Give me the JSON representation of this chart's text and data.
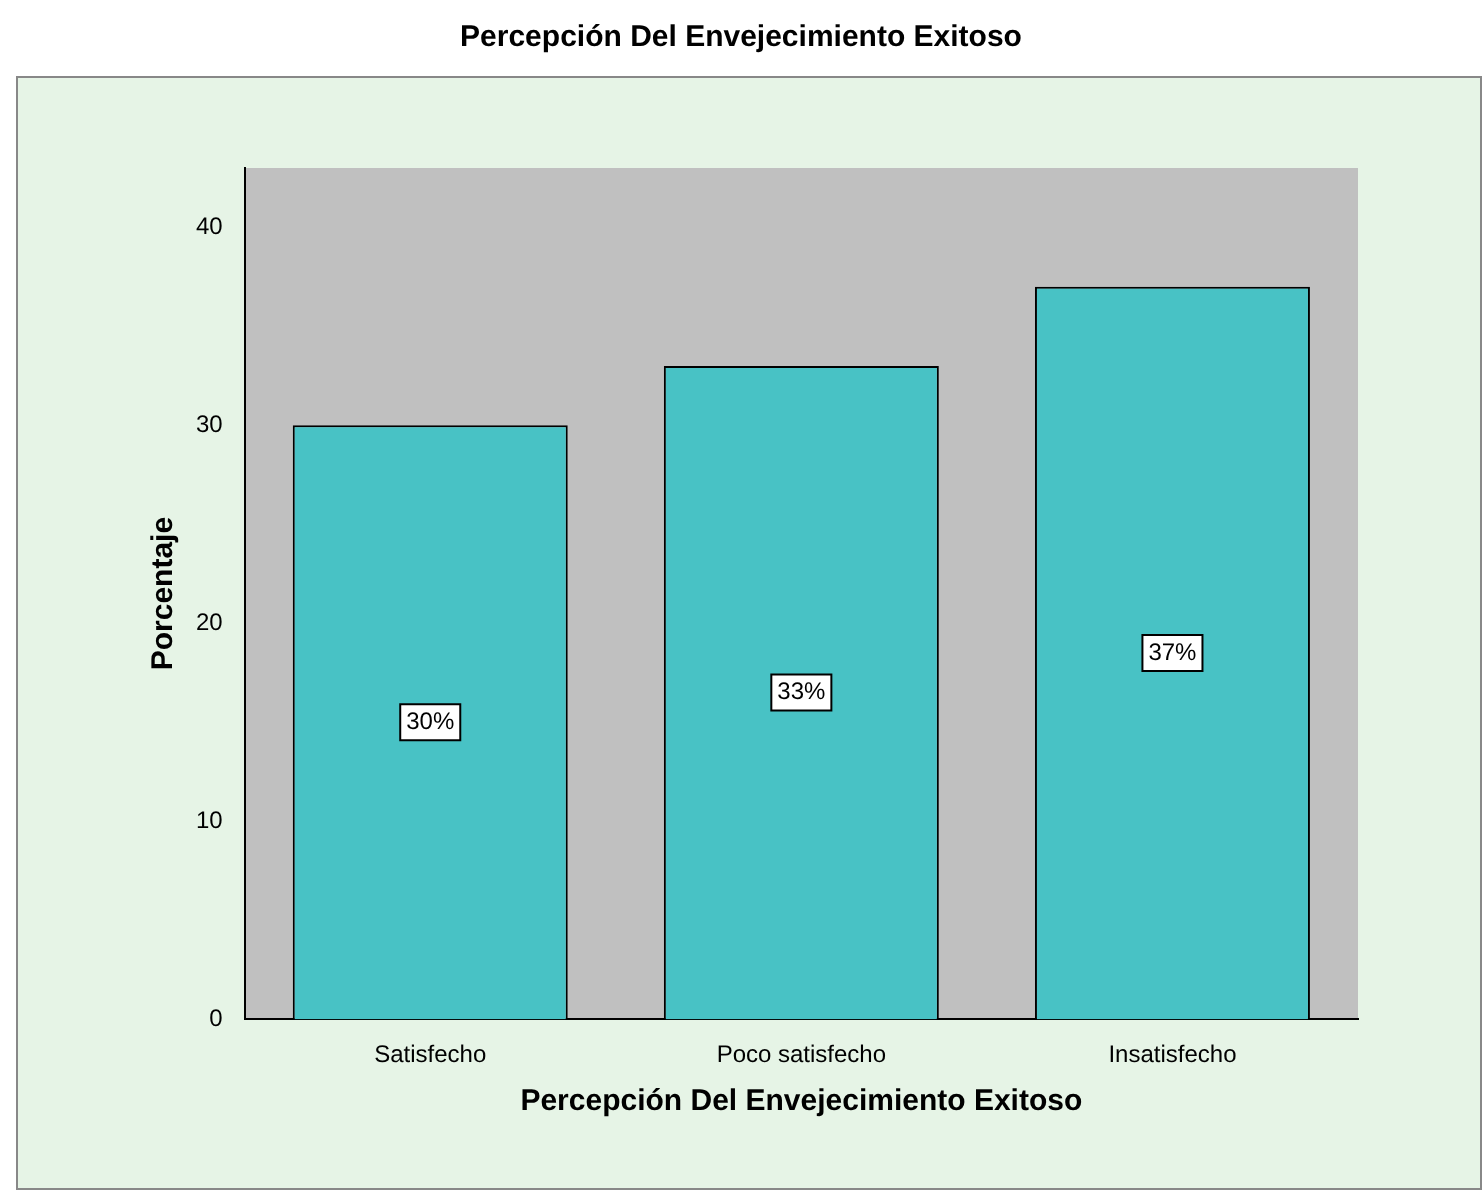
{
  "chart_data": {
    "type": "bar",
    "title": "Percepción Del Envejecimiento Exitoso",
    "xlabel": "Percepción Del Envejecimiento Exitoso",
    "ylabel": "Porcentaje",
    "categories": [
      "Satisfecho",
      "Poco satisfecho",
      "Insatisfecho"
    ],
    "values": [
      30,
      33,
      37
    ],
    "value_labels": [
      "30%",
      "33%",
      "37%"
    ],
    "color": "#48c2c5",
    "ylim": [
      0,
      43
    ],
    "yticks": [
      0,
      10,
      20,
      30,
      40
    ],
    "grid": false,
    "legend": false
  }
}
